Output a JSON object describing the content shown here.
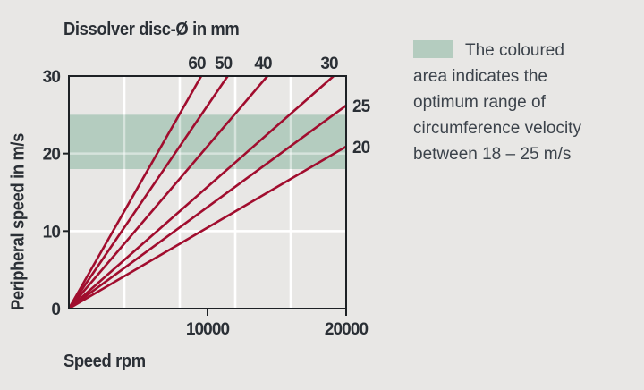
{
  "figure": {
    "background_color": "#e8e7e5",
    "axis_color": "#1d2125",
    "text_color": "#2a2f35"
  },
  "legend": {
    "swatch_color": "#b4ccbf",
    "lines": [
      "The coloured",
      "area indicates the",
      "optimum range of",
      "circumference velocity",
      "between 18 – 25 m/s"
    ]
  },
  "chart_data": {
    "type": "line",
    "title": "Dissolver disc-Ø in mm",
    "xlabel": "Speed rpm",
    "ylabel": "Peripheral speed in m/s",
    "xlim": [
      0,
      20000
    ],
    "ylim": [
      0,
      30
    ],
    "x_tick_labels": [
      {
        "value": 10000,
        "label": "10000"
      },
      {
        "value": 20000,
        "label": "20000"
      }
    ],
    "y_tick_labels": [
      {
        "value": 0,
        "label": "0"
      },
      {
        "value": 10,
        "label": "10"
      },
      {
        "value": 20,
        "label": "20"
      },
      {
        "value": 30,
        "label": "30"
      }
    ],
    "x_gridlines": [
      4000,
      8000,
      12000,
      16000
    ],
    "y_gridlines": [
      10,
      20
    ],
    "grid_color": "#ffffff",
    "band": {
      "y_from": 18,
      "y_to": 25,
      "color": "#b4ccbf"
    },
    "series_color": "#a10d2e",
    "series": [
      {
        "name": "disc-60mm",
        "label": "60",
        "label_side": "top",
        "points": [
          [
            0,
            0
          ],
          [
            9549,
            30
          ]
        ]
      },
      {
        "name": "disc-50mm",
        "label": "50",
        "label_side": "top",
        "points": [
          [
            0,
            0
          ],
          [
            11459,
            30
          ]
        ]
      },
      {
        "name": "disc-40mm",
        "label": "40",
        "label_side": "top",
        "points": [
          [
            0,
            0
          ],
          [
            14324,
            30
          ]
        ]
      },
      {
        "name": "disc-30mm",
        "label": "30",
        "label_side": "top",
        "points": [
          [
            0,
            0
          ],
          [
            19099,
            30
          ]
        ]
      },
      {
        "name": "disc-25mm",
        "label": "25",
        "label_side": "right",
        "points": [
          [
            0,
            0
          ],
          [
            20000,
            26.2
          ]
        ]
      },
      {
        "name": "disc-20mm",
        "label": "20",
        "label_side": "right",
        "points": [
          [
            0,
            0
          ],
          [
            20000,
            20.9
          ]
        ]
      }
    ]
  }
}
